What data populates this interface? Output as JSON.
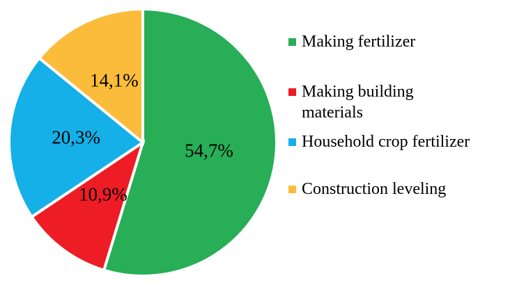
{
  "chart_data": {
    "type": "pie",
    "categories": [
      "Making fertilizer",
      "Making building materials",
      "Household crop fertilizer",
      "Construction leveling"
    ],
    "values": [
      54.7,
      10.9,
      20.3,
      14.1
    ],
    "value_labels": [
      "54,7%",
      "10,9%",
      "20,3%",
      "14,1%"
    ],
    "colors": [
      "#27ae57",
      "#ee1c25",
      "#15b0e8",
      "#fbbc3c"
    ],
    "legend": "right"
  }
}
